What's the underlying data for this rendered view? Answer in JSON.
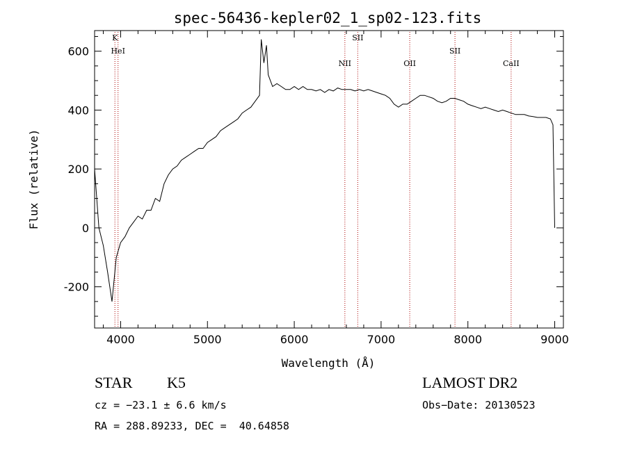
{
  "chart_data": {
    "type": "line",
    "title": "spec-56436-kepler02_1_sp02-123.fits",
    "xlabel": "Wavelength (Å)",
    "ylabel": "Flux (relative)",
    "xlim": [
      3700,
      9100
    ],
    "ylim": [
      -340,
      670
    ],
    "x_ticks": [
      4000,
      5000,
      6000,
      7000,
      8000,
      9000
    ],
    "y_ticks": [
      -200,
      0,
      200,
      400,
      600
    ],
    "grid": false,
    "series": [
      {
        "x": [
          3700,
          3750,
          3800,
          3850,
          3900,
          3950,
          4000,
          4050,
          4100,
          4150,
          4200,
          4250,
          4300,
          4350,
          4400,
          4450,
          4500,
          4550,
          4600,
          4650,
          4700,
          4750,
          4800,
          4850,
          4900,
          4950,
          5000,
          5050,
          5100,
          5150,
          5200,
          5250,
          5300,
          5350,
          5400,
          5450,
          5500,
          5550,
          5600,
          5620,
          5650,
          5680,
          5700,
          5750,
          5800,
          5850,
          5900,
          5950,
          6000,
          6050,
          6100,
          6150,
          6200,
          6250,
          6300,
          6350,
          6400,
          6450,
          6500,
          6550,
          6600,
          6650,
          6700,
          6750,
          6800,
          6850,
          6900,
          6950,
          7000,
          7050,
          7100,
          7150,
          7200,
          7250,
          7300,
          7350,
          7400,
          7450,
          7500,
          7550,
          7600,
          7650,
          7700,
          7750,
          7800,
          7850,
          7900,
          7950,
          8000,
          8050,
          8100,
          8150,
          8200,
          8250,
          8300,
          8350,
          8400,
          8450,
          8500,
          8550,
          8600,
          8650,
          8700,
          8750,
          8800,
          8850,
          8900,
          8950,
          8980,
          9000
        ],
        "y": [
          200,
          0,
          -60,
          -150,
          -250,
          -100,
          -50,
          -30,
          0,
          20,
          40,
          30,
          60,
          60,
          100,
          90,
          150,
          180,
          200,
          210,
          230,
          240,
          250,
          260,
          270,
          270,
          290,
          300,
          310,
          330,
          340,
          350,
          360,
          370,
          390,
          400,
          410,
          430,
          450,
          640,
          560,
          620,
          520,
          480,
          490,
          480,
          470,
          470,
          480,
          470,
          480,
          470,
          470,
          465,
          470,
          460,
          470,
          465,
          475,
          470,
          470,
          470,
          465,
          470,
          465,
          470,
          465,
          460,
          455,
          450,
          440,
          420,
          410,
          420,
          420,
          430,
          440,
          450,
          450,
          445,
          440,
          430,
          425,
          430,
          440,
          440,
          435,
          430,
          420,
          415,
          410,
          405,
          410,
          405,
          400,
          395,
          400,
          395,
          390,
          385,
          385,
          385,
          380,
          378,
          375,
          375,
          375,
          370,
          350,
          0
        ]
      }
    ],
    "annotations": [
      {
        "label": "K",
        "x": 3934
      },
      {
        "label": "HeI",
        "x": 3970
      },
      {
        "label": "NII",
        "x": 6583
      },
      {
        "label": "SII",
        "x": 6731
      },
      {
        "label": "OII",
        "x": 7330
      },
      {
        "label": "SII",
        "x": 7851
      },
      {
        "label": "CaII",
        "x": 8498
      }
    ],
    "colors": {
      "line": "#000000",
      "marker_lines": "#aa0000"
    }
  },
  "info": {
    "object_type": "STAR",
    "subclass": "K5",
    "cz_text": "cz = −23.1 ± 6.6 km/s",
    "coords_text": "RA = 288.89233, DEC =  40.64858",
    "survey": "LAMOST DR2",
    "obs_date_text": "Obs−Date: 20130523"
  }
}
